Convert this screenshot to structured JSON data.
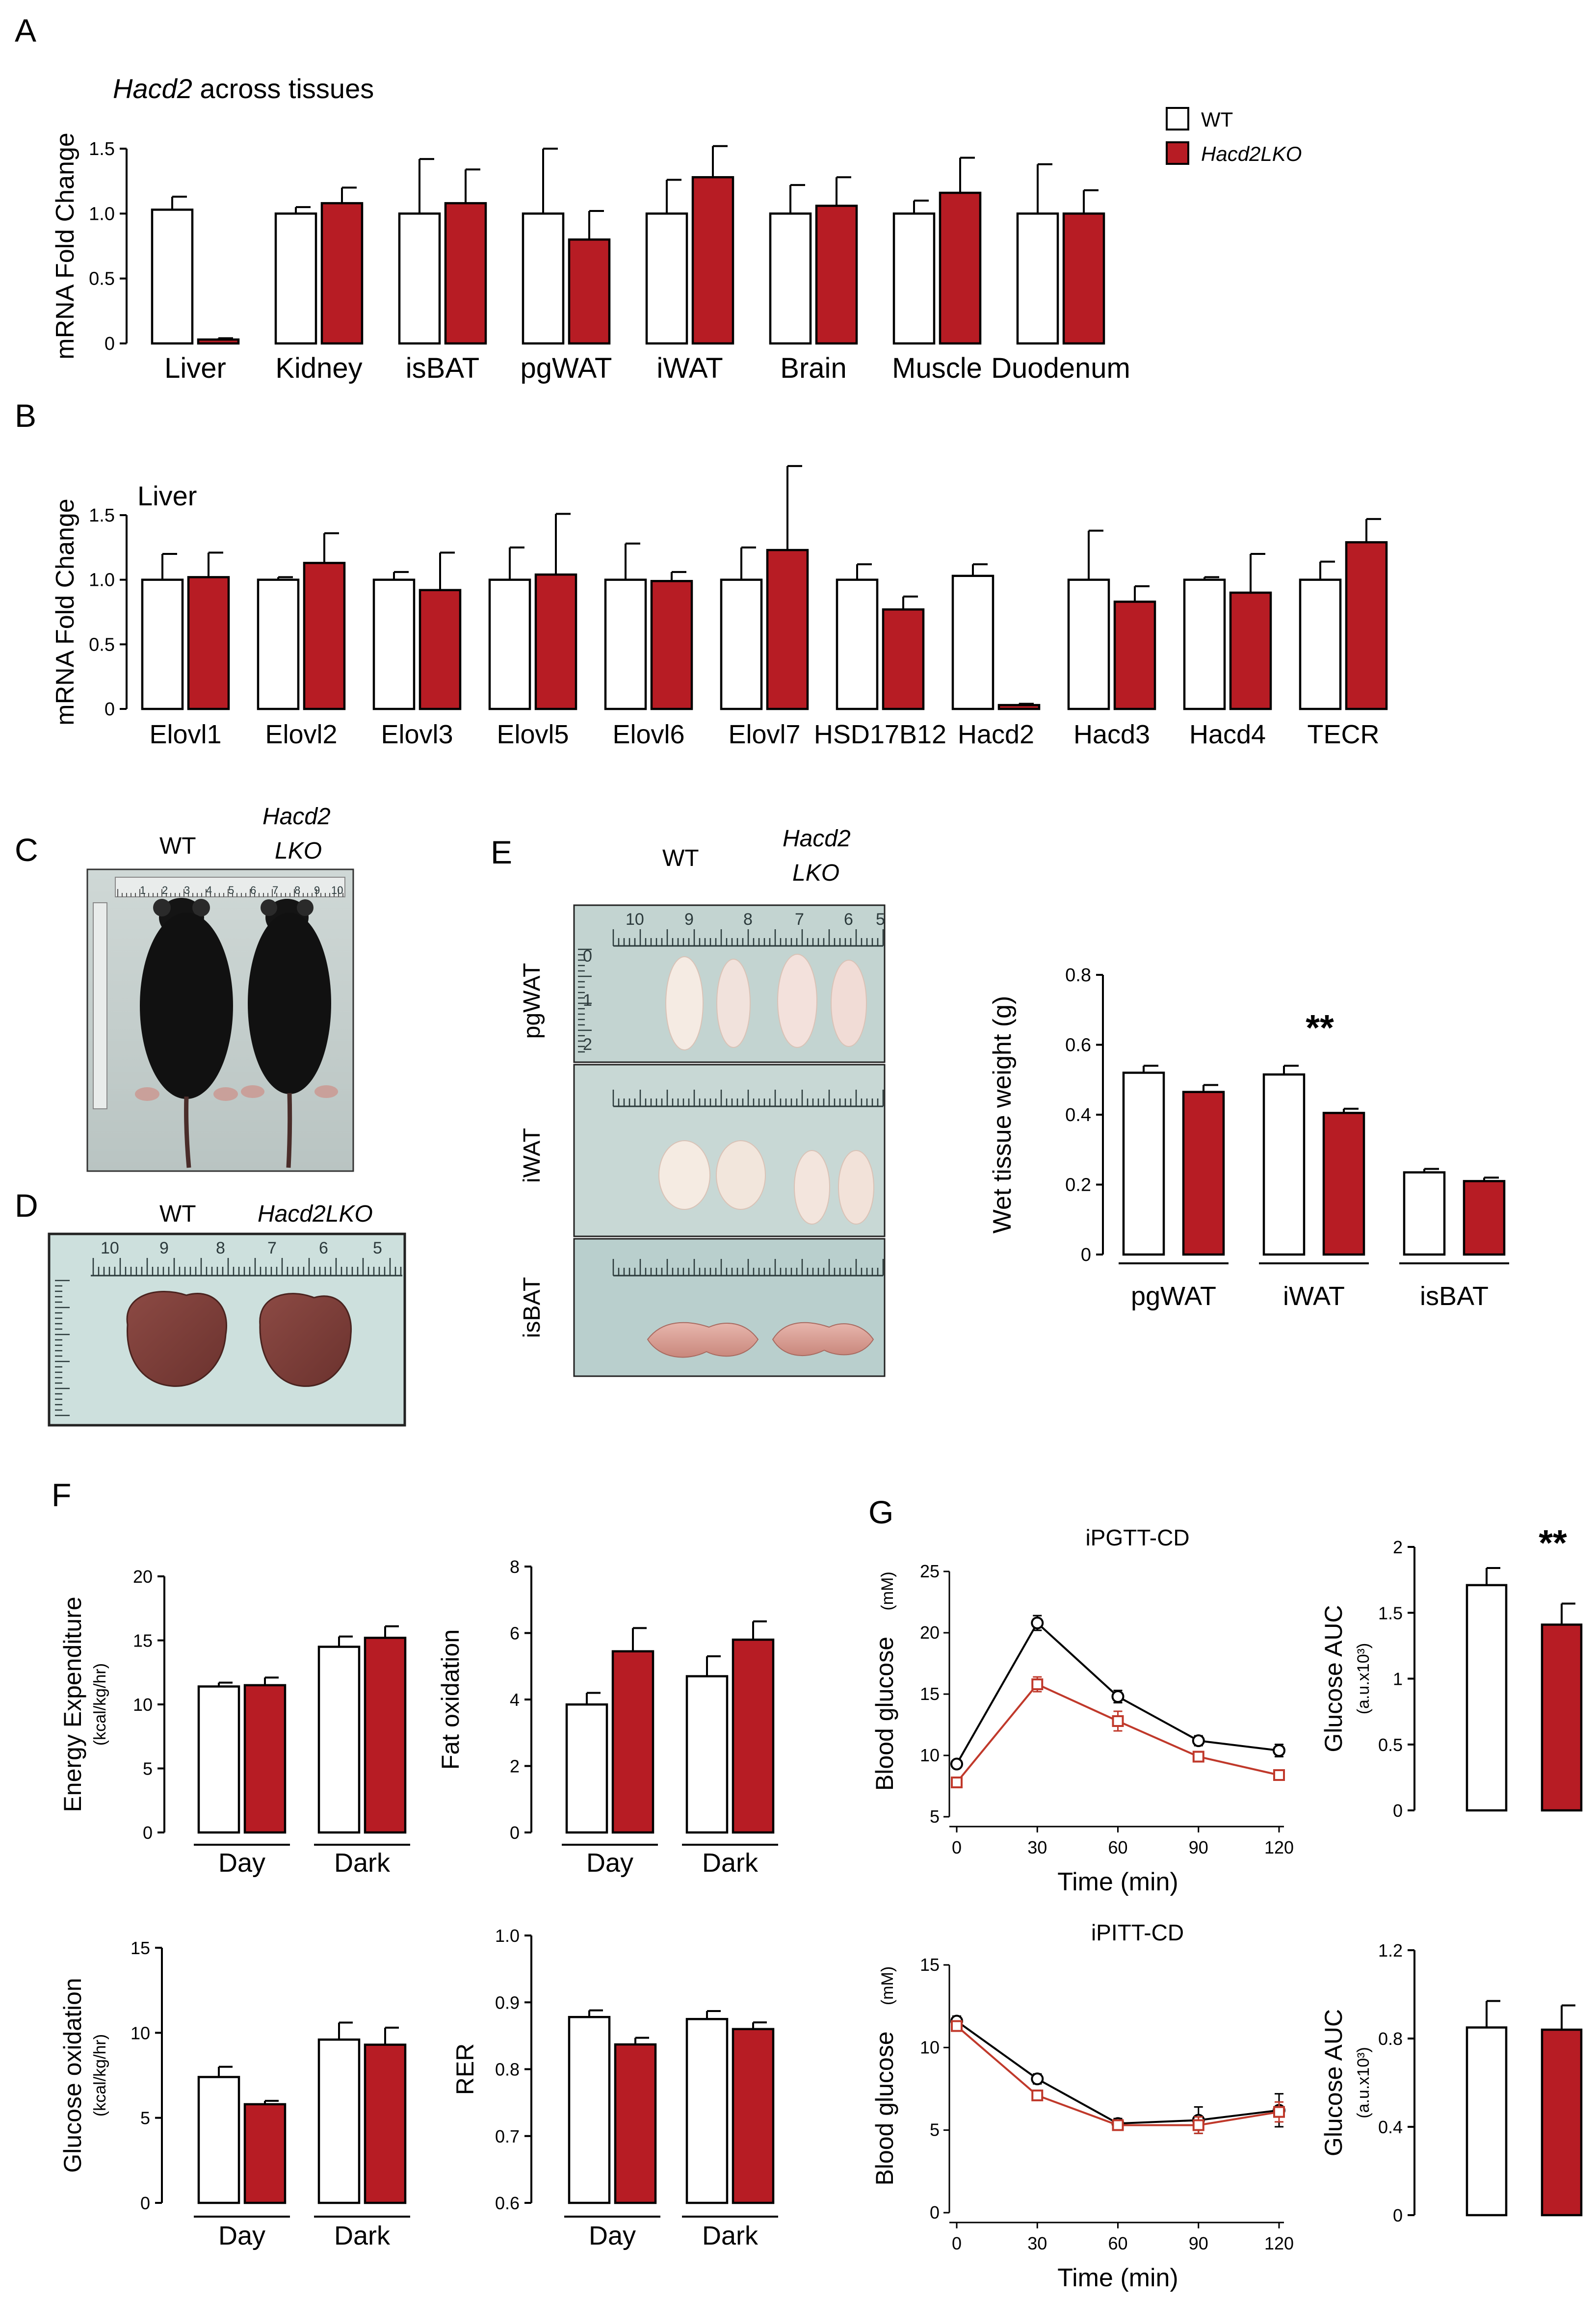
{
  "colors": {
    "wt": "#ffffff",
    "ko": "#b71c24",
    "axis": "#000000",
    "ko_line": "#c0392b"
  },
  "legend": {
    "wt_label": "WT",
    "ko_label": "Hacd2LKO"
  },
  "panels": {
    "A": {
      "letter": "A",
      "title_gene": "Hacd2",
      "title_rest": " across tissues",
      "ylabel": "mRNA Fold Change"
    },
    "B": {
      "letter": "B",
      "title": "Liver",
      "ylabel": "mRNA Fold Change"
    },
    "C": {
      "letter": "C",
      "wt": "WT",
      "ko_line1": "Hacd2",
      "ko_line2": "LKO"
    },
    "D": {
      "letter": "D",
      "wt": "WT",
      "ko": "Hacd2LKO"
    },
    "E": {
      "letter": "E",
      "wt": "WT",
      "ko_line1": "Hacd2",
      "ko_line2": "LKO",
      "row_labels": [
        "pgWAT",
        "iWAT",
        "isBAT"
      ],
      "ylabel": "Wet tissue weight",
      "ylabel_unit": "(g)",
      "sig": "**"
    },
    "F": {
      "letter": "F"
    },
    "G": {
      "letter": "G"
    }
  },
  "ruler_numbers": {
    "c_top": [
      "1",
      "2",
      "3",
      "4",
      "5",
      "6",
      "7",
      "8",
      "9",
      "10"
    ],
    "e_top": [
      "10",
      "9",
      "8",
      "7",
      "6",
      "5"
    ],
    "e_side": [
      "0",
      "1",
      "2"
    ],
    "d_top": [
      "10",
      "9",
      "8",
      "7",
      "6",
      "5"
    ]
  },
  "chart_data": [
    {
      "id": "A",
      "type": "bar",
      "title": "Hacd2 across tissues",
      "ylabel": "mRNA Fold Change",
      "categories": [
        "Liver",
        "Kidney",
        "isBAT",
        "pgWAT",
        "iWAT",
        "Brain",
        "Muscle",
        "Duodenum"
      ],
      "yticks": [
        "0",
        "0.5",
        "1.0",
        "1.5"
      ],
      "ylim": [
        0,
        1.5
      ],
      "series": [
        {
          "name": "WT",
          "values": [
            1.03,
            1.0,
            1.0,
            1.0,
            1.0,
            1.0,
            1.0,
            1.0
          ],
          "errors": [
            0.1,
            0.05,
            0.42,
            0.5,
            0.26,
            0.22,
            0.1,
            0.38
          ]
        },
        {
          "name": "Hacd2LKO",
          "values": [
            0.03,
            1.08,
            1.08,
            0.8,
            1.28,
            1.06,
            1.16,
            1.0
          ],
          "errors": [
            0.01,
            0.12,
            0.26,
            0.22,
            0.24,
            0.22,
            0.27,
            0.18
          ]
        }
      ]
    },
    {
      "id": "B",
      "type": "bar",
      "title": "Liver",
      "ylabel": "mRNA Fold Change",
      "categories": [
        "Elovl1",
        "Elovl2",
        "Elovl3",
        "Elovl5",
        "Elovl6",
        "Elovl7",
        "HSD17B12",
        "Hacd2",
        "Hacd3",
        "Hacd4",
        "TECR"
      ],
      "yticks": [
        "0",
        "0.5",
        "1.0",
        "1.5"
      ],
      "ylim": [
        0,
        1.5
      ],
      "series": [
        {
          "name": "WT",
          "values": [
            1.0,
            1.0,
            1.0,
            1.0,
            1.0,
            1.0,
            1.0,
            1.03,
            1.0,
            1.0,
            1.0
          ],
          "errors": [
            0.2,
            0.02,
            0.06,
            0.25,
            0.28,
            0.25,
            0.12,
            0.09,
            0.38,
            0.02,
            0.14
          ]
        },
        {
          "name": "Hacd2LKO",
          "values": [
            1.02,
            1.13,
            0.92,
            1.04,
            0.99,
            1.23,
            0.77,
            0.03,
            0.83,
            0.9,
            1.29
          ],
          "errors": [
            0.19,
            0.23,
            0.29,
            0.47,
            0.07,
            0.65,
            0.1,
            0.01,
            0.12,
            0.3,
            0.18
          ]
        }
      ]
    },
    {
      "id": "E",
      "type": "bar",
      "ylabel": "Wet tissue weight (g)",
      "categories": [
        "pgWAT",
        "iWAT",
        "isBAT"
      ],
      "yticks": [
        "0",
        "0.2",
        "0.4",
        "0.6",
        "0.8"
      ],
      "ylim": [
        0,
        0.8
      ],
      "annotation": "**",
      "series": [
        {
          "name": "WT",
          "values": [
            0.52,
            0.515,
            0.235
          ],
          "errors": [
            0.02,
            0.025,
            0.01
          ]
        },
        {
          "name": "Hacd2LKO",
          "values": [
            0.465,
            0.405,
            0.21
          ],
          "errors": [
            0.02,
            0.012,
            0.01
          ]
        }
      ]
    },
    {
      "id": "F1",
      "type": "bar",
      "ylabel": "Energy Expenditure",
      "ylabel_unit": "(kcal/kg/hr)",
      "categories": [
        "Day",
        "Dark"
      ],
      "yticks": [
        "0",
        "5",
        "10",
        "15",
        "20"
      ],
      "ylim": [
        0,
        20
      ],
      "series": [
        {
          "name": "WT",
          "values": [
            11.4,
            14.5
          ],
          "errors": [
            0.3,
            0.8
          ]
        },
        {
          "name": "Hacd2LKO",
          "values": [
            11.5,
            15.2
          ],
          "errors": [
            0.6,
            0.9
          ]
        }
      ]
    },
    {
      "id": "F2",
      "type": "bar",
      "ylabel": "Fat oxidation",
      "ylabel_unit": "(kcal/kg/hr)",
      "categories": [
        "Day",
        "Dark"
      ],
      "yticks": [
        "0",
        "2",
        "4",
        "6",
        "8"
      ],
      "ylim": [
        0,
        8
      ],
      "series": [
        {
          "name": "WT",
          "values": [
            3.85,
            4.7
          ],
          "errors": [
            0.35,
            0.6
          ]
        },
        {
          "name": "Hacd2LKO",
          "values": [
            5.45,
            5.8
          ],
          "errors": [
            0.7,
            0.55
          ]
        }
      ]
    },
    {
      "id": "F3",
      "type": "bar",
      "ylabel": "Glucose oxidation",
      "ylabel_unit": "(kcal/kg/hr)",
      "categories": [
        "Day",
        "Dark"
      ],
      "yticks": [
        "0",
        "5",
        "10",
        "15"
      ],
      "ylim": [
        0,
        15
      ],
      "series": [
        {
          "name": "WT",
          "values": [
            7.4,
            9.6
          ],
          "errors": [
            0.6,
            1.0
          ]
        },
        {
          "name": "Hacd2LKO",
          "values": [
            5.8,
            9.3
          ],
          "errors": [
            0.2,
            1.0
          ]
        }
      ]
    },
    {
      "id": "F4",
      "type": "bar",
      "ylabel": "RER",
      "categories": [
        "Day",
        "Dark"
      ],
      "yticks": [
        "0.6",
        "0.7",
        "0.8",
        "0.9",
        "1.0"
      ],
      "ylim": [
        0.6,
        1.0
      ],
      "series": [
        {
          "name": "WT",
          "values": [
            0.878,
            0.875
          ],
          "errors": [
            0.01,
            0.012
          ]
        },
        {
          "name": "Hacd2LKO",
          "values": [
            0.837,
            0.86
          ],
          "errors": [
            0.01,
            0.01
          ]
        }
      ]
    },
    {
      "id": "G1",
      "type": "line",
      "title": "iPGTT-CD",
      "xlabel": "Time (min)",
      "ylabel": "Blood glucose",
      "ylabel_unit": "(mM)",
      "x": [
        0,
        30,
        60,
        90,
        120
      ],
      "xticks": [
        "0",
        "30",
        "60",
        "90",
        "120"
      ],
      "xlim": [
        0,
        120
      ],
      "yticks": [
        "5",
        "10",
        "15",
        "20",
        "25"
      ],
      "ylim": [
        5,
        25
      ],
      "series": [
        {
          "name": "WT",
          "values": [
            9.3,
            20.8,
            14.8,
            11.2,
            10.4
          ],
          "errors": [
            0.3,
            0.6,
            0.5,
            0.4,
            0.5
          ]
        },
        {
          "name": "Hacd2LKO",
          "values": [
            7.8,
            15.8,
            12.8,
            9.9,
            8.4
          ],
          "errors": [
            0.2,
            0.6,
            0.8,
            0.3,
            0.3
          ]
        }
      ]
    },
    {
      "id": "G2",
      "type": "bar",
      "ylabel": "Glucose AUC",
      "ylabel_unit": "(a.u.x10³)",
      "categories": [
        ""
      ],
      "yticks": [
        "0",
        "0.5",
        "1",
        "1.5",
        "2"
      ],
      "ylim": [
        0,
        2
      ],
      "annotation": "**",
      "series": [
        {
          "name": "WT",
          "values": [
            1.71
          ],
          "errors": [
            0.13
          ]
        },
        {
          "name": "Hacd2LKO",
          "values": [
            1.41
          ],
          "errors": [
            0.16
          ]
        }
      ]
    },
    {
      "id": "G3",
      "type": "line",
      "title": "iPITT-CD",
      "xlabel": "Time (min)",
      "ylabel": "Blood glucose",
      "ylabel_unit": "(mM)",
      "x": [
        0,
        30,
        60,
        90,
        120
      ],
      "xticks": [
        "0",
        "30",
        "60",
        "90",
        "120"
      ],
      "xlim": [
        0,
        120
      ],
      "yticks": [
        "0",
        "5",
        "10",
        "15"
      ],
      "ylim": [
        0,
        15
      ],
      "series": [
        {
          "name": "WT",
          "values": [
            11.6,
            8.1,
            5.4,
            5.6,
            6.2
          ],
          "errors": [
            0.3,
            0.3,
            0.3,
            0.8,
            1.0
          ]
        },
        {
          "name": "Hacd2LKO",
          "values": [
            11.3,
            7.1,
            5.3,
            5.3,
            6.1
          ],
          "errors": [
            0.3,
            0.3,
            0.2,
            0.5,
            0.6
          ]
        }
      ]
    },
    {
      "id": "G4",
      "type": "bar",
      "ylabel": "Glucose AUC",
      "ylabel_unit": "(a.u.x10³)",
      "categories": [
        ""
      ],
      "yticks": [
        "0",
        "0.4",
        "0.8",
        "1.2"
      ],
      "ylim": [
        0,
        1.2
      ],
      "series": [
        {
          "name": "WT",
          "values": [
            0.85
          ],
          "errors": [
            0.12
          ]
        },
        {
          "name": "Hacd2LKO",
          "values": [
            0.84
          ],
          "errors": [
            0.11
          ]
        }
      ]
    }
  ]
}
